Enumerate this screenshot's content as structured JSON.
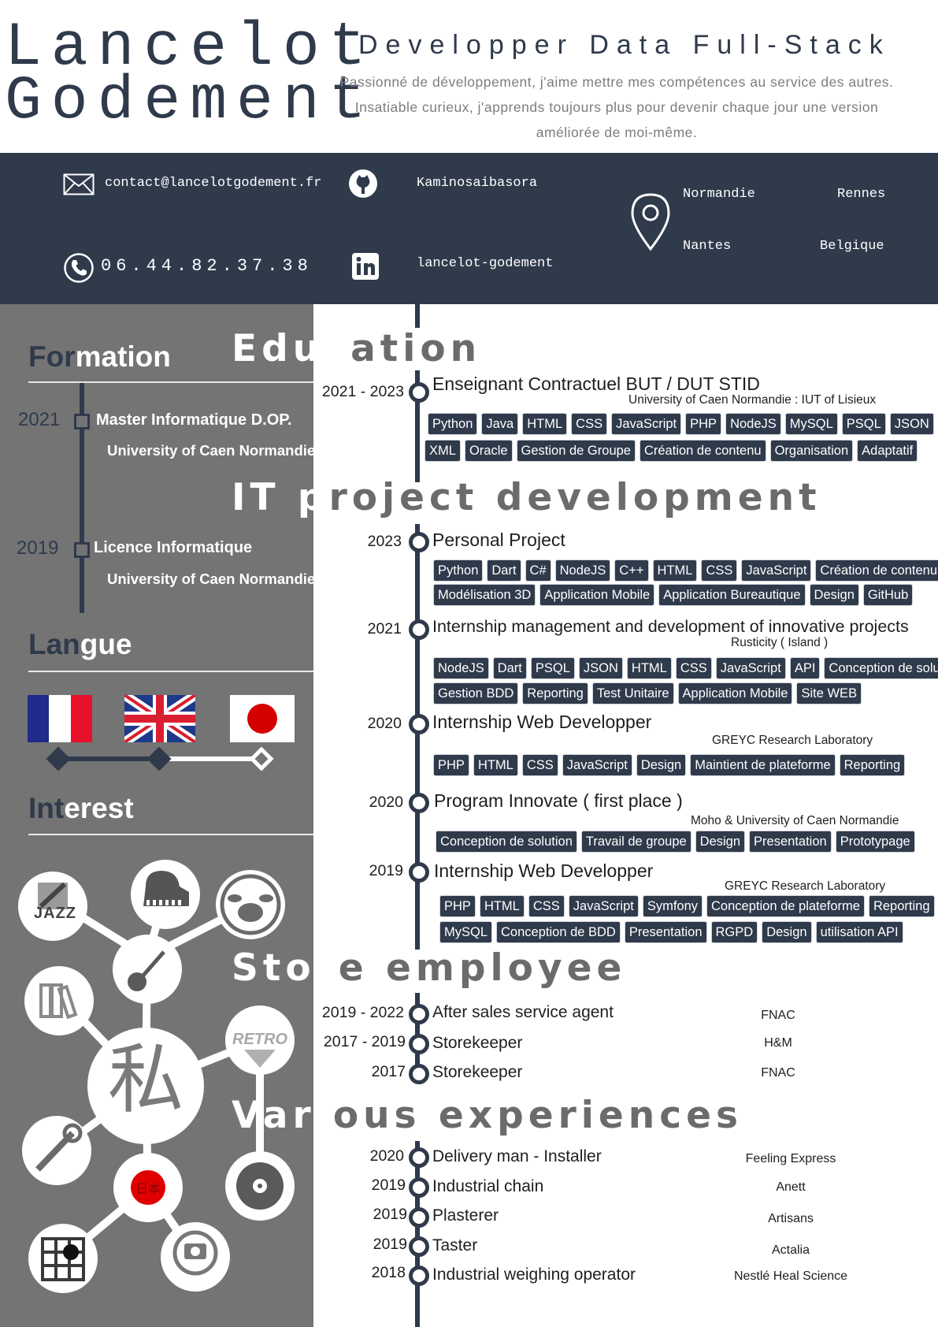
{
  "header": {
    "first_name": "Lancelot",
    "last_name": "Godement",
    "job_title": "Developper Data Full-Stack",
    "pitch": "Passionné de développement, j'aime mettre mes compétences au service des autres. Insatiable curieux, j'apprends toujours plus pour devenir chaque jour une version améliorée de moi-même."
  },
  "contact": {
    "email": "contact@lancelotgodement.fr",
    "github": "Kaminosaibasora",
    "phone": "06.44.82.37.38",
    "linkedin": "lancelot-godement",
    "locations": [
      "Normandie",
      "Rennes",
      "Nantes",
      "Belgique"
    ]
  },
  "sidebar": {
    "formation_title_a": "For",
    "formation_title_b": "mation",
    "formation": [
      {
        "year": "2021",
        "degree": "Master Informatique D.OP.",
        "school": "University of Caen Normandie"
      },
      {
        "year": "2019",
        "degree": "Licence Informatique",
        "school": "University of Caen Normandie"
      }
    ],
    "langue_title_a": "Lan",
    "langue_title_b": "gue",
    "interest_title_a": "Int",
    "interest_title_b": "erest",
    "interest_center": "私",
    "interest_labels": {
      "jazz": "JAZZ",
      "retro": "RETRO",
      "japan": "日本"
    }
  },
  "sections": {
    "education_a": "Educ",
    "education_b": "ation",
    "it_a": "IT p",
    "it_b": "roject development",
    "store_a": "Stor",
    "store_b": "e employee",
    "various_a": "Vari",
    "various_b": "ous experiences"
  },
  "education": {
    "year": "2021 - 2023",
    "title": "Enseignant Contractuel BUT / DUT STID",
    "org": "University of Caen Normandie : IUT of Lisieux",
    "tags1": [
      "Python",
      "Java",
      "HTML",
      "CSS",
      "JavaScript",
      "PHP",
      "NodeJS",
      "MySQL",
      "PSQL",
      "JSON"
    ],
    "tags2": [
      "XML",
      "Oracle",
      "Gestion de Groupe",
      "Création de contenu",
      "Organisation",
      "Adaptatif"
    ]
  },
  "projects": [
    {
      "year": "2023",
      "title": "Personal Project",
      "org": "",
      "tags1": [
        "Python",
        "Dart",
        "C#",
        "NodeJS",
        "C++",
        "HTML",
        "CSS",
        "JavaScript",
        "Création de contenu"
      ],
      "tags2": [
        "Modélisation 3D",
        "Application Mobile",
        "Application Bureautique",
        "Design",
        "GitHub"
      ]
    },
    {
      "year": "2021",
      "title": "Internship management and development of innovative projects",
      "org": "Rusticity ( Island )",
      "tags1": [
        "NodeJS",
        "Dart",
        "PSQL",
        "JSON",
        "HTML",
        "CSS",
        "JavaScript",
        "API",
        "Conception de solution"
      ],
      "tags2": [
        "Gestion BDD",
        "Reporting",
        "Test Unitaire",
        "Application Mobile",
        "Site WEB"
      ]
    },
    {
      "year": "2020",
      "title": "Internship Web Developper",
      "org": "GREYC Research Laboratory",
      "tags1": [
        "PHP",
        "HTML",
        "CSS",
        "JavaScript",
        "Design",
        "Maintient de plateforme",
        "Reporting"
      ],
      "tags2": []
    },
    {
      "year": "2020",
      "title": "Program Innovate ( first place )",
      "org": "Moho & University of Caen Normandie",
      "tags1": [
        "Conception de solution",
        "Travail de groupe",
        "Design",
        "Presentation",
        "Prototypage"
      ],
      "tags2": []
    },
    {
      "year": "2019",
      "title": "Internship Web Developper",
      "org": "GREYC Research Laboratory",
      "tags1": [
        "PHP",
        "HTML",
        "CSS",
        "JavaScript",
        "Symfony",
        "Conception de plateforme",
        "Reporting"
      ],
      "tags2": [
        "MySQL",
        "Conception de BDD",
        "Presentation",
        "RGPD",
        "Design",
        "utilisation API"
      ]
    }
  ],
  "store": [
    {
      "year": "2019 - 2022",
      "title": "After sales service agent",
      "company": "FNAC"
    },
    {
      "year": "2017 - 2019",
      "title": "Storekeeper",
      "company": "H&M"
    },
    {
      "year": "2017",
      "title": "Storekeeper",
      "company": "FNAC"
    }
  ],
  "various": [
    {
      "year": "2020",
      "title": "Delivery man - Installer",
      "company": "Feeling Express"
    },
    {
      "year": "2019",
      "title": "Industrial chain",
      "company": "Anett"
    },
    {
      "year": "2019",
      "title": "Plasterer",
      "company": "Artisans"
    },
    {
      "year": "2019",
      "title": "Taster",
      "company": "Actalia"
    },
    {
      "year": "2018",
      "title": "Industrial weighing operator",
      "company": "Nestlé Heal Science"
    }
  ],
  "colors": {
    "navy": "#2f3a4b",
    "sidebar_gray": "#747474",
    "section_gray": "#6b6b6b"
  }
}
